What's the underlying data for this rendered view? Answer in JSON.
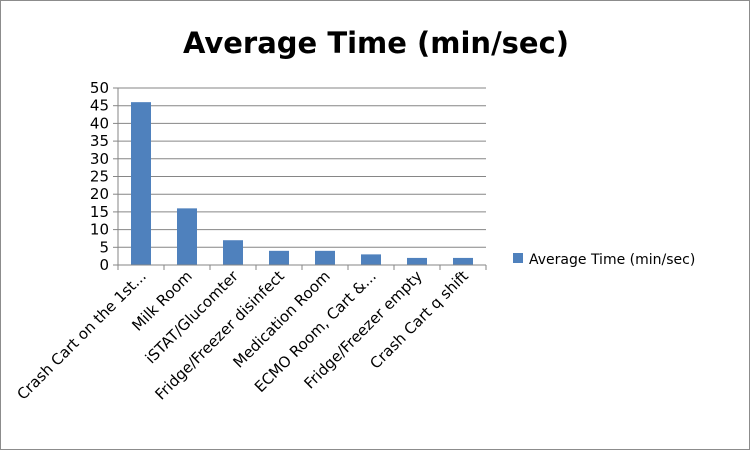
{
  "chart_data": {
    "type": "bar",
    "title": "Average Time (min/sec)",
    "xlabel": "",
    "ylabel": "",
    "categories": [
      "Crash Cart on the 1st...",
      "Milk Room",
      "iSTAT/Glucomter",
      "Fridge/Freezer disinfect",
      "Medication Room",
      "ECMO Room, Cart &...",
      "Fridge/Freezer empty",
      "Crash Cart q shift"
    ],
    "series": [
      {
        "name": "Average Time (min/sec)",
        "values": [
          46,
          16,
          7,
          4,
          4,
          3,
          2,
          2
        ]
      }
    ],
    "ylim": [
      0,
      50
    ],
    "yticks": [
      0,
      5,
      10,
      15,
      20,
      25,
      30,
      35,
      40,
      45,
      50
    ],
    "grid": true,
    "legend": "right",
    "bar_color": "#4f81bd"
  }
}
